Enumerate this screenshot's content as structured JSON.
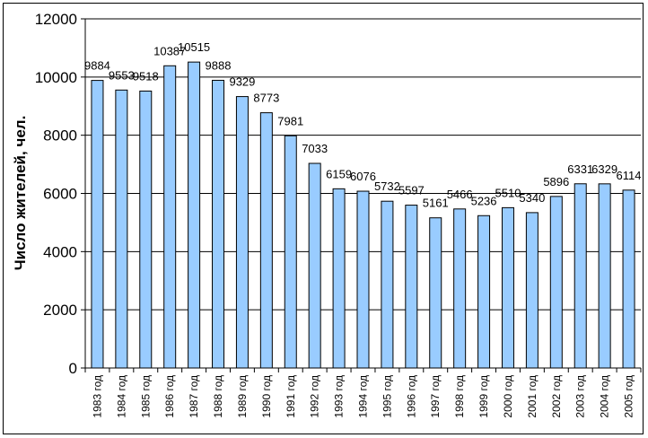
{
  "chart_data": {
    "type": "bar",
    "title": "",
    "xlabel": "",
    "ylabel": "Число жителей, чел.",
    "ylim": [
      0,
      12000
    ],
    "yticks": [
      0,
      2000,
      4000,
      6000,
      8000,
      10000,
      12000
    ],
    "grid": true,
    "legend": "none",
    "colors": {
      "bar_fill": "#99ccff",
      "bar_stroke": "#000000",
      "grid": "#000000"
    },
    "categories": [
      "1983 год",
      "1984 год",
      "1985 год",
      "1986 год",
      "1987 год",
      "1988 год",
      "1989 год",
      "1990 год",
      "1991 год",
      "1992 год",
      "1993 год",
      "1994 год",
      "1995 год",
      "1996 год",
      "1997 год",
      "1998 год",
      "1999 год",
      "2000 год",
      "2001 год",
      "2002 год",
      "2003 год",
      "2004 год",
      "2005 год"
    ],
    "values": [
      9884,
      9553,
      9518,
      10387,
      10515,
      9888,
      9329,
      8773,
      7981,
      7033,
      6159,
      6076,
      5732,
      5597,
      5161,
      5466,
      5236,
      5510,
      5340,
      5896,
      6331,
      6329,
      6114
    ]
  }
}
